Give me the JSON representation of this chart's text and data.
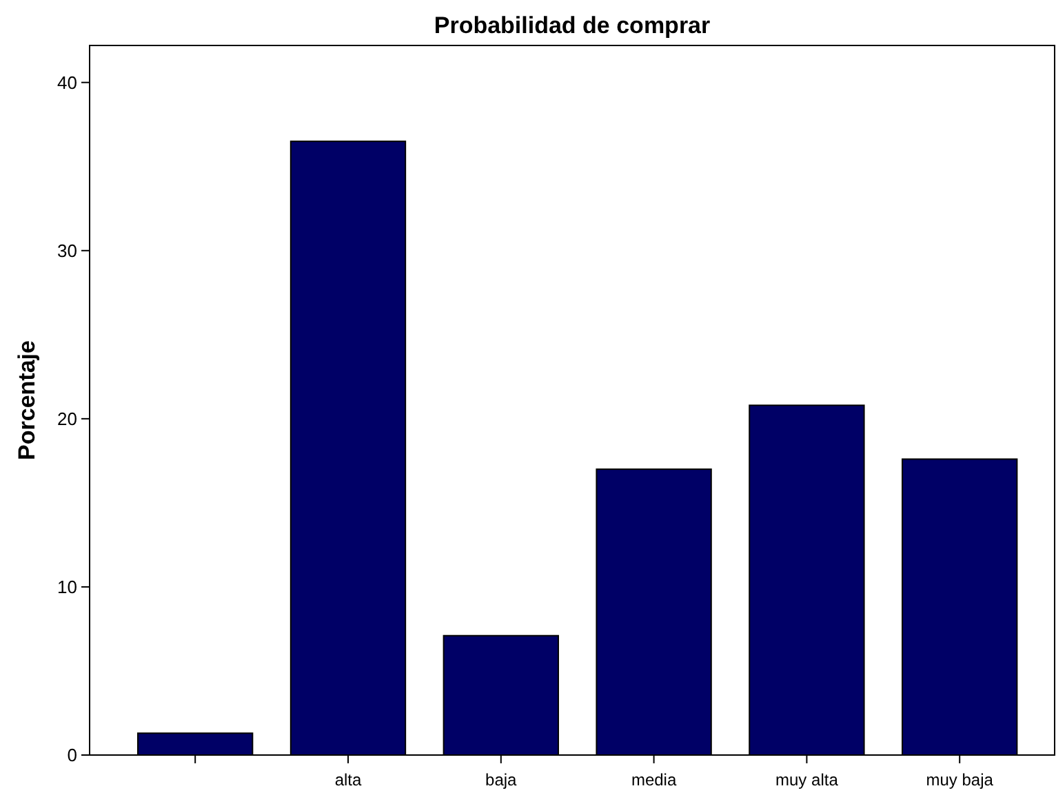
{
  "chart_data": {
    "type": "bar",
    "title": "Probabilidad de comprar",
    "ylabel": "Porcentaje",
    "categories": [
      null,
      "alta",
      "baja",
      "media",
      "muy alta",
      "muy baja"
    ],
    "values": [
      1.3,
      36.5,
      7.1,
      17.0,
      20.8,
      17.6
    ],
    "color": "#000066",
    "ylim": [
      0,
      42.2
    ],
    "yticks": [
      0,
      10,
      20,
      30,
      40
    ],
    "grid": false
  }
}
